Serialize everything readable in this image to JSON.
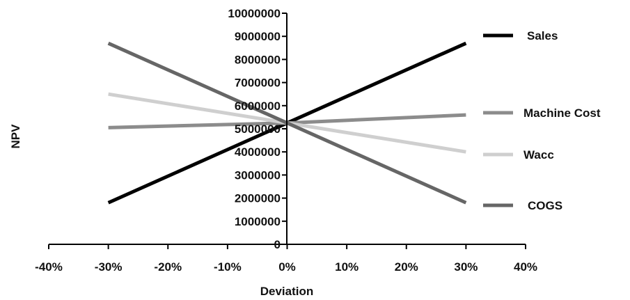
{
  "chart_data": {
    "type": "line",
    "xlabel": "Deviation",
    "ylabel": "NPV",
    "xlim": [
      -0.4,
      0.4
    ],
    "ylim": [
      0,
      10000000
    ],
    "x_ticks": [
      -0.4,
      -0.3,
      -0.2,
      -0.1,
      0,
      0.1,
      0.2,
      0.3,
      0.4
    ],
    "x_tick_labels": [
      "-40%",
      "-30%",
      "-20%",
      "-10%",
      "0%",
      "10%",
      "20%",
      "30%",
      "40%"
    ],
    "y_ticks": [
      0,
      1000000,
      2000000,
      3000000,
      4000000,
      5000000,
      6000000,
      7000000,
      8000000,
      9000000,
      10000000
    ],
    "y_tick_labels": [
      "0",
      "1000000",
      "2000000",
      "3000000",
      "4000000",
      "5000000",
      "6000000",
      "7000000",
      "8000000",
      "9000000",
      "10000000"
    ],
    "grid": false,
    "legend_position": "right",
    "series": [
      {
        "name": "Sales",
        "color": "#000000",
        "x": [
          -0.3,
          0,
          0.3
        ],
        "values": [
          1800000,
          5250000,
          8700000
        ]
      },
      {
        "name": "Machine Cost",
        "color": "#8c8c8c",
        "x": [
          -0.3,
          0,
          0.3
        ],
        "values": [
          5050000,
          5250000,
          5600000
        ]
      },
      {
        "name": "Wacc",
        "color": "#cfcfcf",
        "x": [
          -0.3,
          0,
          0.3
        ],
        "values": [
          6500000,
          5250000,
          4000000
        ]
      },
      {
        "name": "COGS",
        "color": "#666666",
        "x": [
          -0.3,
          0,
          0.3
        ],
        "values": [
          8700000,
          5250000,
          1800000
        ]
      }
    ]
  }
}
